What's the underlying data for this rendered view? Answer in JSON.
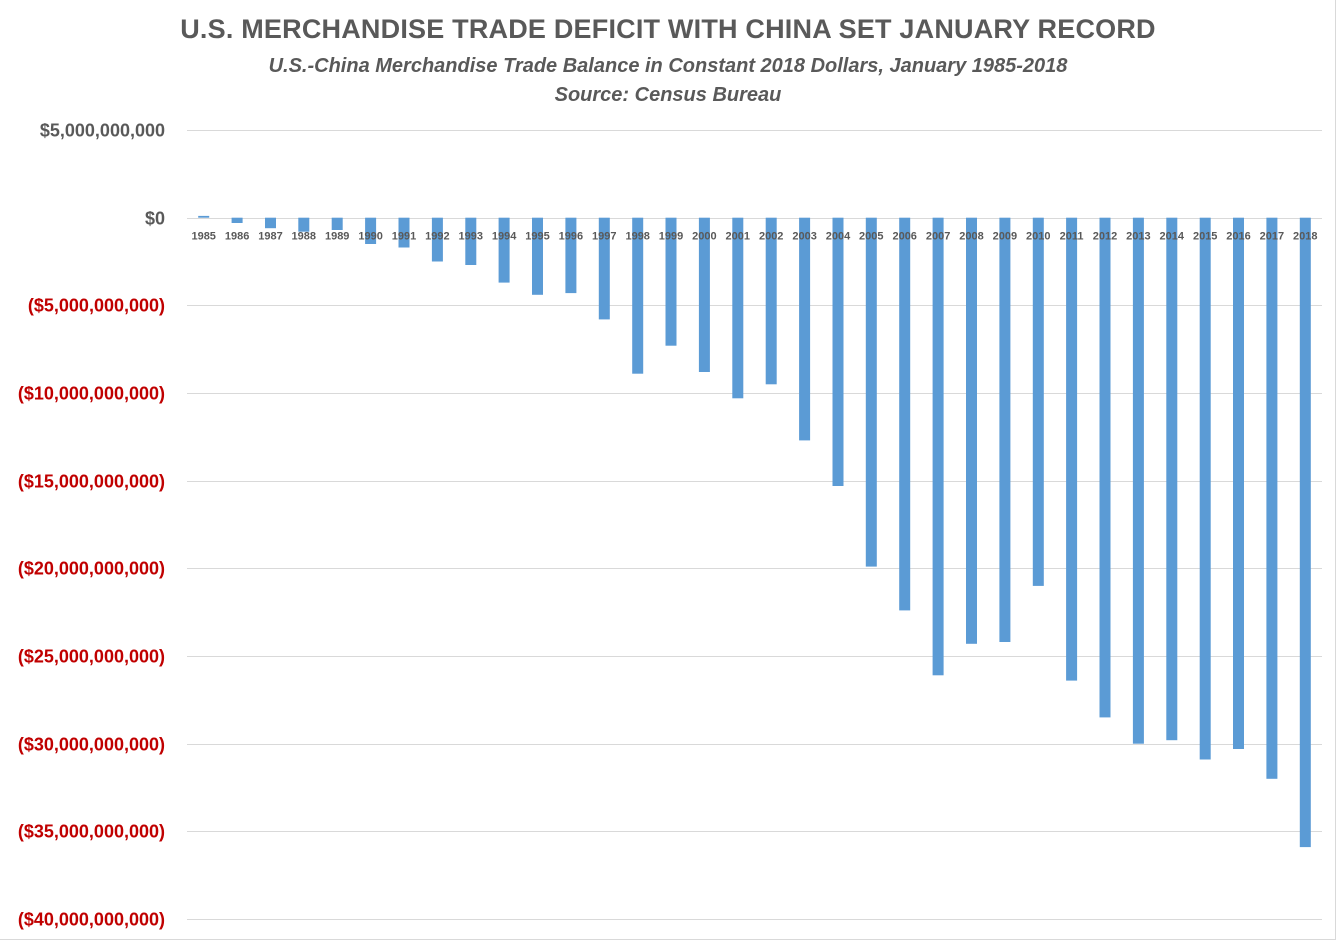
{
  "chart_data": {
    "type": "bar",
    "title": "U.S. MERCHANDISE TRADE DEFICIT WITH CHINA SET JANUARY RECORD",
    "subtitle": "U.S.-China Merchandise Trade Balance in Constant 2018 Dollars, January 1985-2018",
    "source": "Source: Census Bureau",
    "xlabel": "",
    "ylabel": "",
    "ylim": [
      -40000000000,
      5000000000
    ],
    "grid": true,
    "colors": {
      "bar": "#5b9bd5",
      "gridline": "#d9d9d9",
      "positive_tick": "#595959",
      "negative_tick": "#c00000"
    },
    "y_ticks": [
      {
        "value": 5000000000,
        "label": "$5,000,000,000"
      },
      {
        "value": 0,
        "label": "$0"
      },
      {
        "value": -5000000000,
        "label": "($5,000,000,000)"
      },
      {
        "value": -10000000000,
        "label": "($10,000,000,000)"
      },
      {
        "value": -15000000000,
        "label": "($15,000,000,000)"
      },
      {
        "value": -20000000000,
        "label": "($20,000,000,000)"
      },
      {
        "value": -25000000000,
        "label": "($25,000,000,000)"
      },
      {
        "value": -30000000000,
        "label": "($30,000,000,000)"
      },
      {
        "value": -35000000000,
        "label": "($35,000,000,000)"
      },
      {
        "value": -40000000000,
        "label": "($40,000,000,000)"
      }
    ],
    "categories": [
      "1985",
      "1986",
      "1987",
      "1988",
      "1989",
      "1990",
      "1991",
      "1992",
      "1993",
      "1994",
      "1995",
      "1996",
      "1997",
      "1998",
      "1999",
      "2000",
      "2001",
      "2002",
      "2003",
      "2004",
      "2005",
      "2006",
      "2007",
      "2008",
      "2009",
      "2010",
      "2011",
      "2012",
      "2013",
      "2014",
      "2015",
      "2016",
      "2017",
      "2018"
    ],
    "values": [
      100000000,
      -300000000,
      -600000000,
      -800000000,
      -700000000,
      -1500000000,
      -1700000000,
      -2500000000,
      -2700000000,
      -3700000000,
      -4400000000,
      -4300000000,
      -5800000000,
      -8900000000,
      -7300000000,
      -8800000000,
      -10300000000,
      -9500000000,
      -12700000000,
      -15300000000,
      -19900000000,
      -22400000000,
      -26100000000,
      -24300000000,
      -24200000000,
      -21000000000,
      -26400000000,
      -28500000000,
      -30000000000,
      -29800000000,
      -30900000000,
      -30300000000,
      -32000000000,
      -35900000000
    ]
  }
}
